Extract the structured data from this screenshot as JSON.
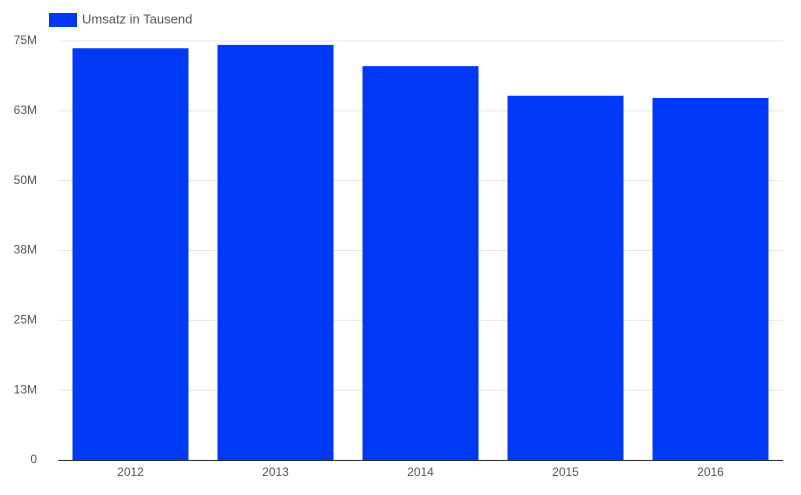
{
  "chart_data": {
    "type": "bar",
    "categories": [
      "2012",
      "2013",
      "2014",
      "2015",
      "2016"
    ],
    "series": [
      {
        "name": "Umsatz in Tausend",
        "color": "#0039f5",
        "values": [
          73700000,
          74300000,
          70500000,
          65200000,
          64800000
        ]
      }
    ],
    "ylim": [
      0,
      75000000
    ],
    "yticks": [
      0,
      {
        "value": 12500000,
        "label": "13M"
      },
      {
        "value": 25000000,
        "label": "25M"
      },
      {
        "value": 37500000,
        "label": "38M"
      },
      {
        "value": 50000000,
        "label": "50M"
      },
      {
        "value": 62500000,
        "label": "63M"
      },
      {
        "value": 75000000,
        "label": "75M"
      }
    ],
    "grid": true,
    "legend": "top-left"
  }
}
